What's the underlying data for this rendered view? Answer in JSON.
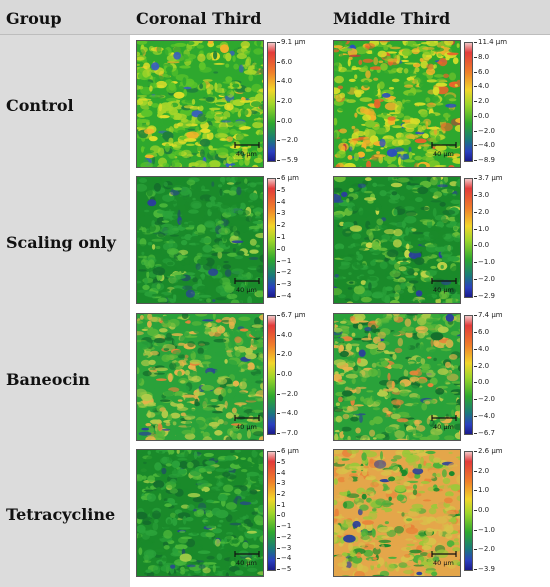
{
  "header": {
    "group": "Group",
    "coronal": "Coronal Third",
    "middle": "Middle Third"
  },
  "groups": [
    "Control",
    "Scaling only",
    "Baneocin",
    "Tetracycline"
  ],
  "scale_bar_label": "40 µm",
  "colors": {
    "header_bg": "#d9d9d9",
    "group_bg": "#dcdcdc"
  },
  "panels": [
    {
      "row": 0,
      "col": 0,
      "labels": [
        "9.1 µm",
        "6.0",
        "4.0",
        "2.0",
        "0.0",
        "−2.0",
        "−5.9"
      ],
      "palette": "mixed-yellow",
      "seed": 11
    },
    {
      "row": 0,
      "col": 1,
      "labels": [
        "11.4 µm",
        "8.0",
        "6.0",
        "4.0",
        "2.0",
        "0.0",
        "−2.0",
        "−4.0",
        "−8.9"
      ],
      "palette": "mixed-red",
      "seed": 23
    },
    {
      "row": 1,
      "col": 0,
      "labels": [
        "6 µm",
        "5",
        "4",
        "3",
        "2",
        "1",
        "0",
        "−1",
        "−2",
        "−3",
        "−4"
      ],
      "palette": "green-dark",
      "seed": 37
    },
    {
      "row": 1,
      "col": 1,
      "labels": [
        "3.7 µm",
        "3.0",
        "2.0",
        "1.0",
        "0.0",
        "−1.0",
        "−2.0",
        "−2.9"
      ],
      "palette": "green-yellow",
      "seed": 41
    },
    {
      "row": 2,
      "col": 0,
      "labels": [
        "6.7 µm",
        "4.0",
        "2.0",
        "0.0",
        "−2.0",
        "−4.0",
        "−7.0"
      ],
      "palette": "green-orange",
      "seed": 53
    },
    {
      "row": 2,
      "col": 1,
      "labels": [
        "7.4 µm",
        "6.0",
        "4.0",
        "2.0",
        "0.0",
        "−2.0",
        "−4.0",
        "−6.7"
      ],
      "palette": "green-orange",
      "seed": 67
    },
    {
      "row": 3,
      "col": 0,
      "labels": [
        "6 µm",
        "5",
        "4",
        "3",
        "2",
        "1",
        "0",
        "−1",
        "−2",
        "−3",
        "−4",
        "−5"
      ],
      "palette": "green-dark",
      "seed": 71
    },
    {
      "row": 3,
      "col": 1,
      "labels": [
        "2.6 µm",
        "2.0",
        "1.0",
        "0.0",
        "−1.0",
        "−2.0",
        "−3.9"
      ],
      "palette": "orange-green",
      "seed": 83
    }
  ]
}
